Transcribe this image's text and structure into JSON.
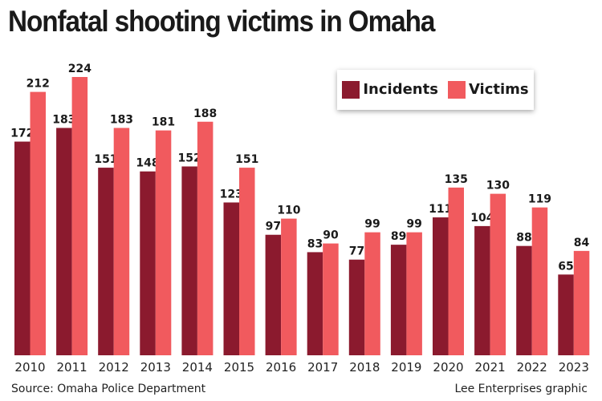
{
  "chart_data": {
    "type": "bar",
    "title": "Nonfatal shooting victims in Omaha",
    "categories": [
      "2010",
      "2011",
      "2012",
      "2013",
      "2014",
      "2015",
      "2016",
      "2017",
      "2018",
      "2019",
      "2020",
      "2021",
      "2022",
      "2023"
    ],
    "series": [
      {
        "name": "Incidents",
        "color": "#8b1a2e",
        "values": [
          172,
          183,
          151,
          148,
          152,
          123,
          97,
          83,
          77,
          89,
          111,
          104,
          88,
          65
        ]
      },
      {
        "name": "Victims",
        "color": "#f15a5e",
        "values": [
          212,
          224,
          183,
          181,
          188,
          151,
          110,
          90,
          99,
          99,
          135,
          130,
          119,
          84
        ]
      }
    ],
    "ylim": [
      0,
      224
    ],
    "grid": false,
    "legend_placement": "top-right",
    "data_labels": true,
    "source": "Source: Omaha Police Department",
    "credit": "Lee Enterprises graphic"
  }
}
